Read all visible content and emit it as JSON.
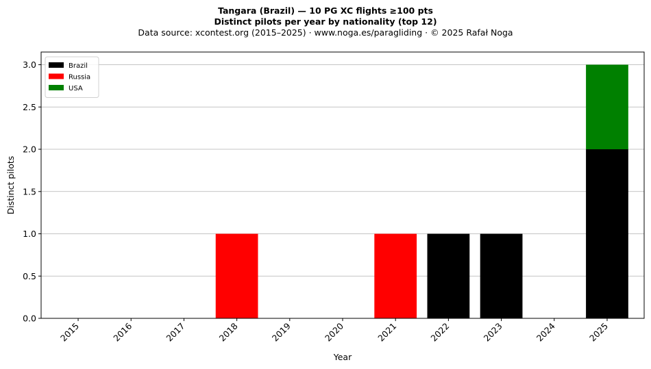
{
  "chart_data": {
    "type": "bar",
    "stacked": true,
    "title": "Tangara (Brazil)  —  10 PG XC flights ≥100 pts",
    "subtitle": "Distinct pilots per year by nationality (top 12)",
    "source": "Data source: xcontest.org (2015–2025)  ·  www.noga.es/paragliding  ·  © 2025 Rafał Noga",
    "xlabel": "Year",
    "ylabel": "Distinct pilots",
    "categories": [
      "2015",
      "2016",
      "2017",
      "2018",
      "2019",
      "2020",
      "2021",
      "2022",
      "2023",
      "2024",
      "2025"
    ],
    "series": [
      {
        "name": "Brazil",
        "color": "#000000",
        "values": [
          0,
          0,
          0,
          0,
          0,
          0,
          0,
          1,
          1,
          0,
          2
        ]
      },
      {
        "name": "Russia",
        "color": "#ff0000",
        "values": [
          0,
          0,
          0,
          1,
          0,
          0,
          1,
          0,
          0,
          0,
          0
        ]
      },
      {
        "name": "USA",
        "color": "#008000",
        "values": [
          0,
          0,
          0,
          0,
          0,
          0,
          0,
          0,
          0,
          0,
          1
        ]
      }
    ],
    "ylim": [
      0,
      3.15
    ],
    "yticks": [
      "0.0",
      "0.5",
      "1.0",
      "1.5",
      "2.0",
      "2.5",
      "3.0"
    ],
    "grid": "y",
    "legend_position": "top-left"
  }
}
